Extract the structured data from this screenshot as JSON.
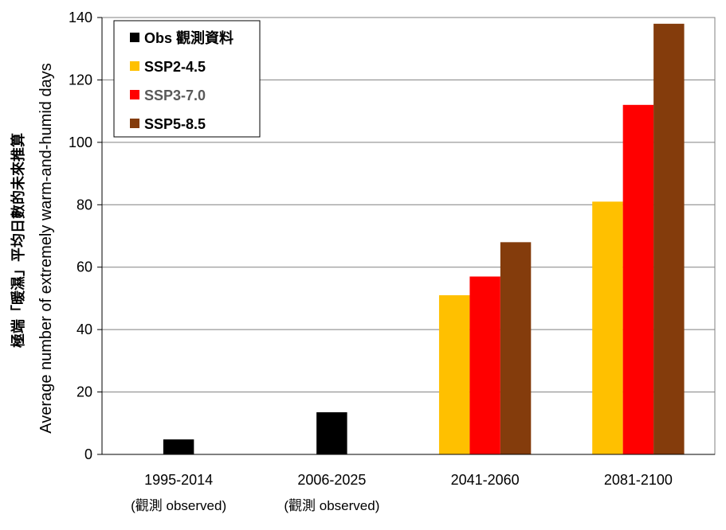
{
  "chart_data": {
    "type": "bar",
    "ylabel_line1": "極端「暖濕」平均日數的未來推算",
    "ylabel_line2": "Average  number of extremely warm-and-humid days",
    "xlabel": "",
    "ylim": [
      0,
      140
    ],
    "yticks": [
      0,
      20,
      40,
      60,
      80,
      100,
      120,
      140
    ],
    "grid": true,
    "legend_position": "top-left",
    "categories": [
      {
        "label": "1995-2014",
        "sublabel": "(觀測 observed)"
      },
      {
        "label": "2006-2025",
        "sublabel": "(觀測 observed)"
      },
      {
        "label": "2041-2060",
        "sublabel": ""
      },
      {
        "label": "2081-2100",
        "sublabel": ""
      }
    ],
    "series": [
      {
        "name": "Obs 觀測資料",
        "color": "#000000",
        "text_color": "#000000",
        "values": [
          4.8,
          13.5,
          null,
          null
        ]
      },
      {
        "name": "SSP2-4.5",
        "color": "#FFC000",
        "text_color": "#000000",
        "values": [
          null,
          null,
          51,
          81
        ]
      },
      {
        "name": "SSP3-7.0",
        "color": "#FF0000",
        "text_color": "#595959",
        "values": [
          null,
          null,
          57,
          112
        ]
      },
      {
        "name": "SSP5-8.5",
        "color": "#843C0C",
        "text_color": "#000000",
        "values": [
          null,
          null,
          68,
          138
        ]
      }
    ]
  }
}
